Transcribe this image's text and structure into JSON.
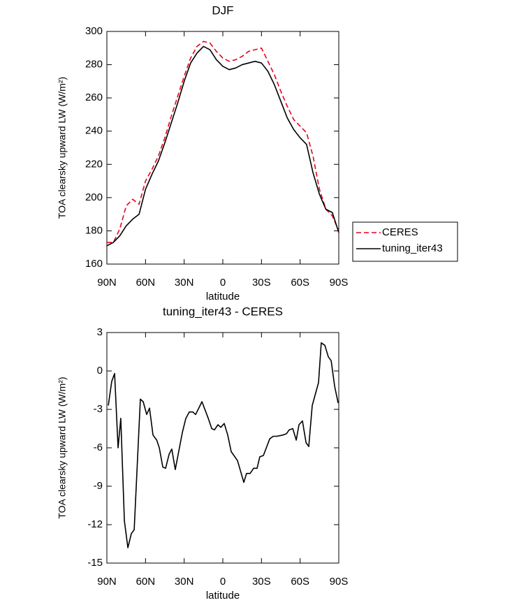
{
  "chart_data": [
    {
      "type": "line",
      "title": "DJF",
      "x_label": "latitude",
      "y_label": "TOA clearsky upward LW (W/m²)",
      "xlim": [
        90,
        -90
      ],
      "xticks": [
        {
          "value": 90,
          "label": "90N"
        },
        {
          "value": 60,
          "label": "60N"
        },
        {
          "value": 30,
          "label": "30N"
        },
        0,
        {
          "value": -30,
          "label": "30S"
        },
        {
          "value": -60,
          "label": "60S"
        },
        {
          "value": -90,
          "label": "90S"
        }
      ],
      "ylim": [
        160,
        300
      ],
      "yticks": [
        160,
        180,
        200,
        220,
        240,
        260,
        280,
        300
      ],
      "legend": "right",
      "x": [
        90,
        85,
        80,
        75,
        70,
        65,
        60,
        55,
        50,
        45,
        40,
        35,
        30,
        25,
        20,
        15,
        10,
        5,
        0,
        -5,
        -10,
        -15,
        -20,
        -25,
        -30,
        -35,
        -40,
        -45,
        -50,
        -55,
        -60,
        -65,
        -70,
        -75,
        -80,
        -85,
        -90
      ],
      "series": [
        {
          "name": "CERES",
          "color": "#e8001c",
          "linestyle": "dashed",
          "values": [
            173,
            173,
            181,
            195,
            199,
            196,
            210,
            217,
            225,
            236,
            249,
            261,
            273,
            284,
            291,
            294,
            293,
            288,
            284,
            282,
            283,
            285,
            288,
            289,
            290,
            282,
            274,
            264,
            255,
            247,
            243,
            239,
            225,
            205,
            193,
            189,
            180
          ]
        },
        {
          "name": "tuning_iter43",
          "color": "#000000",
          "linestyle": "solid",
          "values": [
            171,
            173,
            177,
            183,
            187,
            190,
            205,
            214,
            222,
            233,
            245,
            257,
            270,
            281,
            287,
            291,
            289,
            283,
            279,
            277,
            278,
            280,
            281,
            282,
            281,
            276,
            268,
            258,
            248,
            241,
            236,
            232,
            215,
            202,
            193,
            191,
            179
          ]
        }
      ]
    },
    {
      "type": "line",
      "title": "tuning_iter43 - CERES",
      "x_label": "latitude",
      "y_label": "TOA clearsky upward LW (W/m²)",
      "xlim": [
        90,
        -90
      ],
      "xticks": [
        {
          "value": 90,
          "label": "90N"
        },
        {
          "value": 60,
          "label": "60N"
        },
        {
          "value": 30,
          "label": "30N"
        },
        0,
        {
          "value": -30,
          "label": "30S"
        },
        {
          "value": -60,
          "label": "60S"
        },
        {
          "value": -90,
          "label": "90S"
        }
      ],
      "ylim": [
        -15,
        3
      ],
      "yticks": [
        -15,
        -12,
        -9,
        -6,
        -3,
        0,
        3
      ],
      "color": "#000000",
      "x": [
        88.9,
        86.2,
        84.0,
        81.3,
        79.2,
        76.4,
        73.7,
        71.0,
        68.8,
        64.0,
        61.8,
        59.1,
        56.9,
        54.2,
        51.3,
        49.3,
        46.6,
        44.4,
        41.7,
        39.6,
        36.9,
        31.4,
        28.7,
        26.0,
        23.3,
        21.1,
        16.2,
        11.3,
        8.6,
        6.5,
        3.8,
        1.6,
        -1.1,
        -3.8,
        -6.5,
        -11.4,
        -16.3,
        -18.4,
        -21.2,
        -23.9,
        -26.6,
        -28.7,
        -31.5,
        -36.4,
        -39.1,
        -41.8,
        -46.7,
        -49.4,
        -51.5,
        -54.3,
        -57.0,
        -59.1,
        -61.8,
        -64.6,
        -66.7,
        -69.4,
        -74.3,
        -76.4,
        -79.2,
        -81.9,
        -84.1,
        -86.8,
        -89.5
      ],
      "values": [
        -2.7,
        -0.8,
        -0.2,
        -6.0,
        -3.7,
        -11.7,
        -13.8,
        -12.7,
        -12.4,
        -2.2,
        -2.4,
        -3.4,
        -2.9,
        -5.0,
        -5.4,
        -6.0,
        -7.5,
        -7.6,
        -6.5,
        -6.1,
        -7.7,
        -4.8,
        -3.7,
        -3.2,
        -3.2,
        -3.4,
        -2.4,
        -3.7,
        -4.5,
        -4.6,
        -4.2,
        -4.4,
        -4.1,
        -5.0,
        -6.3,
        -7.0,
        -8.7,
        -8.0,
        -8.0,
        -7.6,
        -7.6,
        -6.7,
        -6.6,
        -5.3,
        -5.1,
        -5.1,
        -5.0,
        -4.9,
        -4.6,
        -4.5,
        -5.4,
        -4.2,
        -3.9,
        -5.6,
        -5.9,
        -2.7,
        -0.9,
        2.2,
        2.0,
        1.1,
        0.8,
        -1.2,
        -2.5
      ]
    }
  ]
}
